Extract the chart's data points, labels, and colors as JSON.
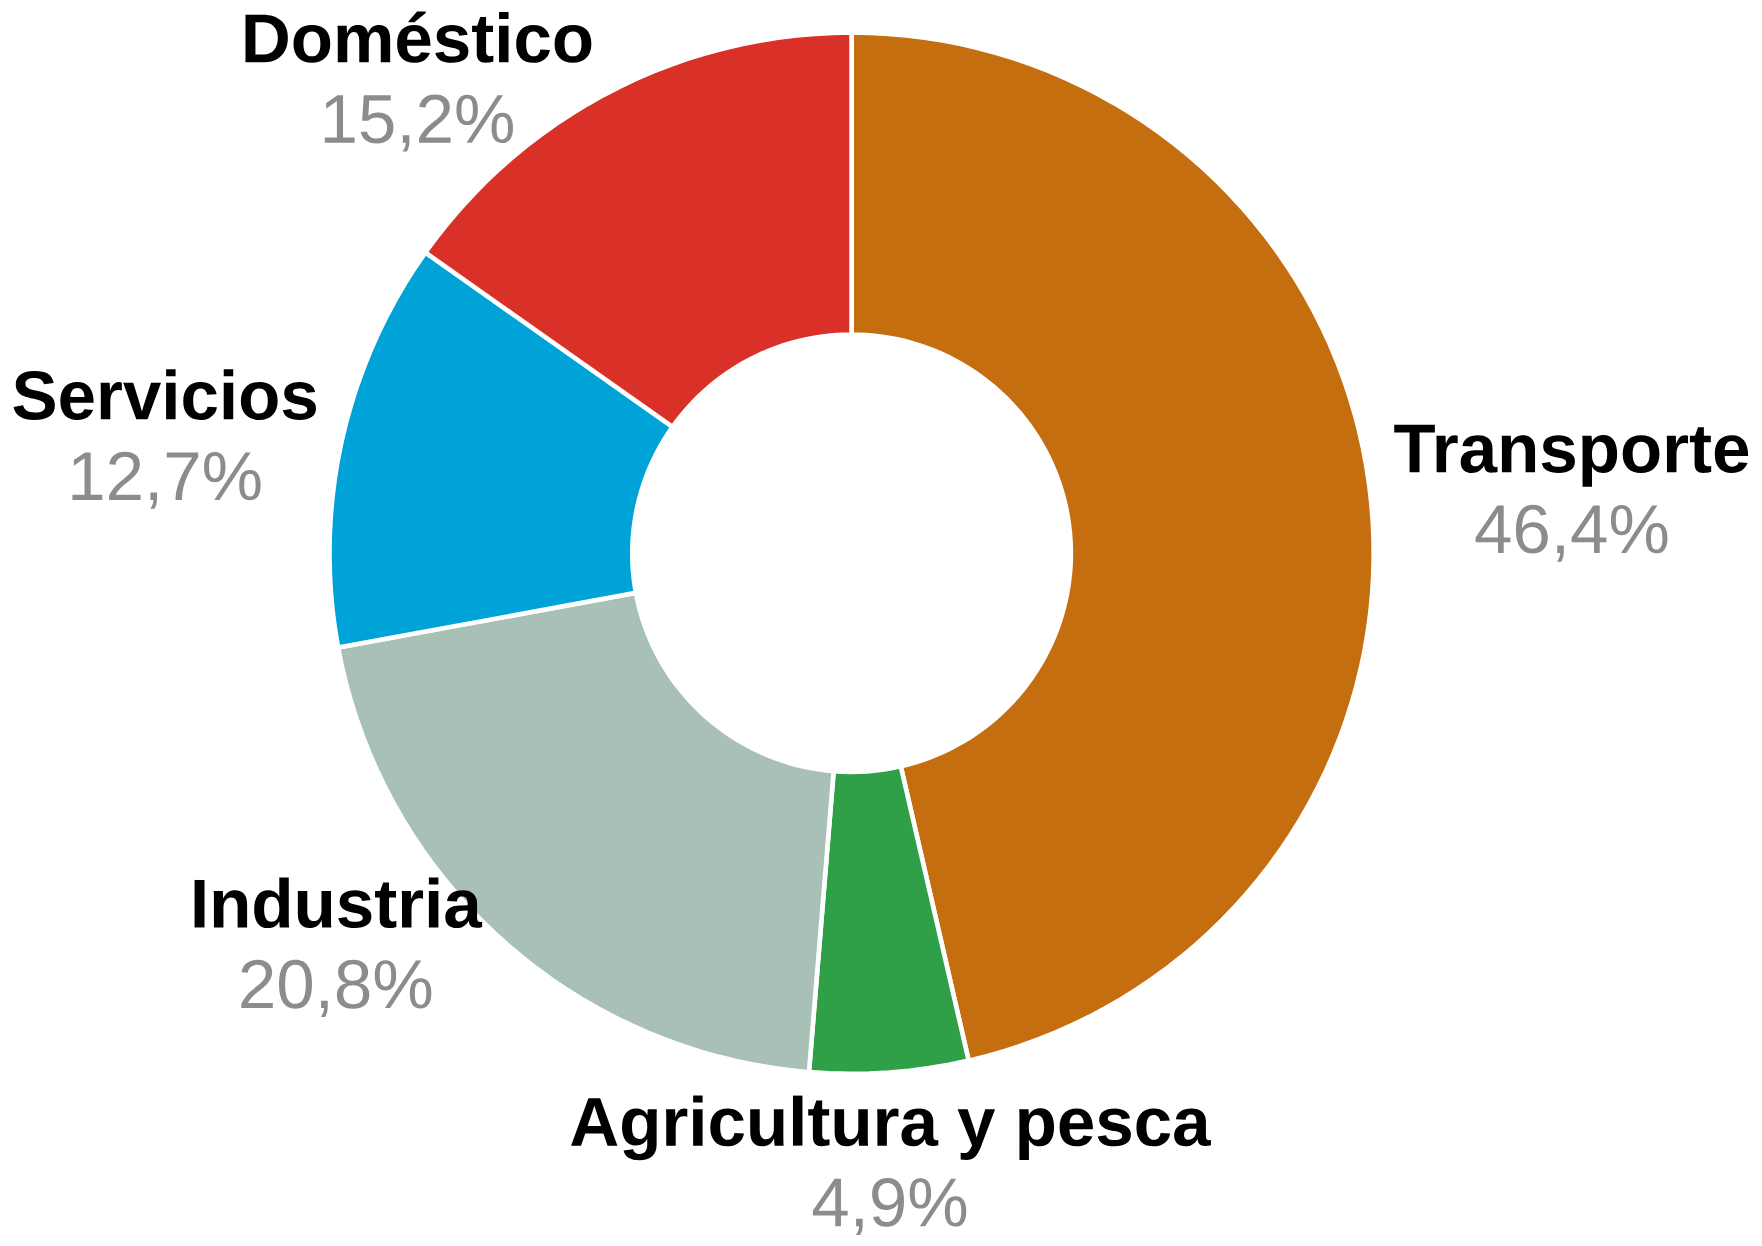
{
  "chart_data": {
    "type": "donut",
    "categories": [
      "Transporte",
      "Agricultura y pesca",
      "Industria",
      "Servicios",
      "Doméstico"
    ],
    "values": [
      46.4,
      4.9,
      20.8,
      12.7,
      15.2
    ],
    "value_labels": [
      "46,4%",
      "4,9%",
      "20,8%",
      "12,7%",
      "15,2%"
    ],
    "colors": [
      "#c46e10",
      "#2fa047",
      "#a8c0b6",
      "#00a3d8",
      "#d93127"
    ]
  }
}
